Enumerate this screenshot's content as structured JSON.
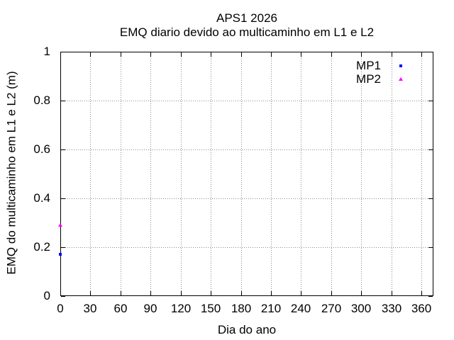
{
  "chart_data": {
    "type": "scatter",
    "title": "APS1 2026",
    "subtitle": "EMQ diario devido ao multicaminho em L1 e L2",
    "xlabel": "Dia do ano",
    "ylabel": "EMQ do multicaminho em L1 e L2 (m)",
    "xlim": [
      0,
      372
    ],
    "ylim": [
      0,
      1
    ],
    "xticks": [
      0,
      30,
      60,
      90,
      120,
      150,
      180,
      210,
      240,
      270,
      300,
      330,
      360
    ],
    "yticks": [
      0,
      0.2,
      0.4,
      0.6,
      0.8,
      1
    ],
    "grid": true,
    "background_color": "#ffffff",
    "axis_color": "#000000",
    "grid_color": "#8a8a8a",
    "legend": {
      "position": "top-right-inside",
      "box": false
    },
    "series": [
      {
        "name": "MP1",
        "color": "#0000ff",
        "marker": "square",
        "points": [
          {
            "x": 0,
            "y": 0.17
          }
        ]
      },
      {
        "name": "MP2",
        "color": "#ff00ff",
        "marker": "triangle",
        "points": [
          {
            "x": 0,
            "y": 0.29
          }
        ]
      }
    ]
  }
}
